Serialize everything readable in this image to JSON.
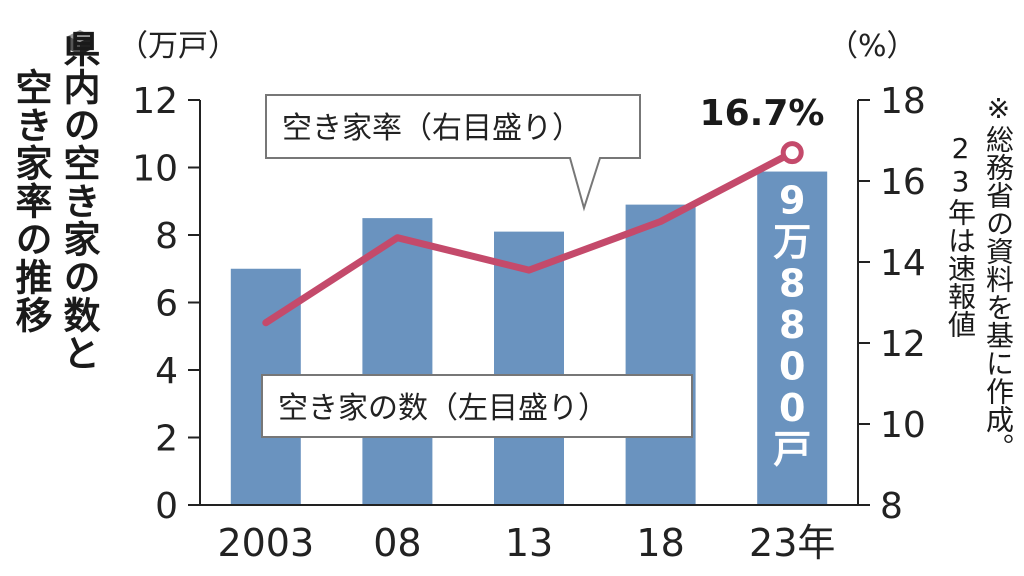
{
  "title_lines": [
    "県内の空き家の数と",
    "空き家率の推移"
  ],
  "note_lines": [
    "※総務省の資料を基に作成。",
    "23年は速報値"
  ],
  "colors": {
    "bar": "#6a93bf",
    "line": "#c44a6b",
    "text": "#222222",
    "axis": "#222222"
  },
  "chart_data": {
    "type": "bar",
    "categories": [
      "2003",
      "08",
      "13",
      "18",
      "23年"
    ],
    "series": [
      {
        "name": "空き家の数（左目盛り）",
        "axis": "left",
        "kind": "bar",
        "values": [
          7.0,
          8.5,
          8.1,
          8.9,
          9.88
        ]
      },
      {
        "name": "空き家率（右目盛り）",
        "axis": "right",
        "kind": "line",
        "values": [
          12.5,
          14.6,
          13.8,
          15.0,
          16.7
        ]
      }
    ],
    "left_axis": {
      "unit": "（万戸）",
      "ylim": [
        0,
        12
      ],
      "ticks": [
        0,
        2,
        4,
        6,
        8,
        10,
        12
      ]
    },
    "right_axis": {
      "unit": "（%）",
      "ylim": [
        8,
        18
      ],
      "ticks": [
        8,
        10,
        12,
        14,
        16,
        18
      ]
    },
    "annotations": {
      "last_rate": "16.7%",
      "last_count": "9万8800戸",
      "rate_callout": "空き家率（右目盛り）",
      "count_callout": "空き家の数（左目盛り）"
    },
    "grid": false,
    "legend": "callouts"
  }
}
